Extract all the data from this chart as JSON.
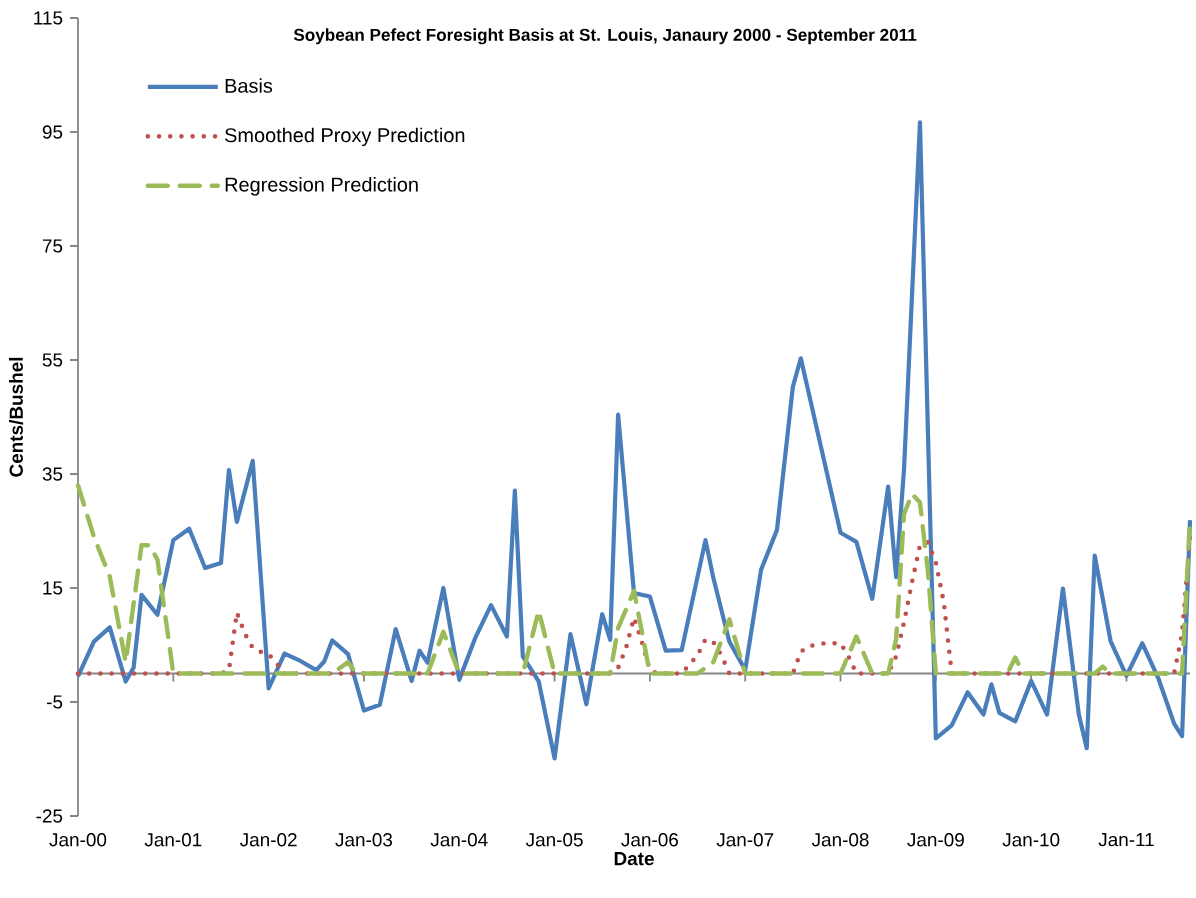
{
  "chart_data": {
    "type": "line",
    "title": "Soybean Pefect Foresight Basis at St. Louis, Janaury 2000 - September 2011",
    "xlabel": "Date",
    "ylabel": "Cents/Bushel",
    "xlim": [
      "2000-01",
      "2011-09"
    ],
    "ylim": [
      -25,
      115
    ],
    "yticks": [
      -25,
      -5,
      15,
      35,
      55,
      75,
      95,
      115
    ],
    "xticks": [
      {
        "value": "2000-01",
        "label": "Jan-00"
      },
      {
        "value": "2001-01",
        "label": "Jan-01"
      },
      {
        "value": "2002-01",
        "label": "Jan-02"
      },
      {
        "value": "2003-01",
        "label": "Jan-03"
      },
      {
        "value": "2004-01",
        "label": "Jan-04"
      },
      {
        "value": "2005-01",
        "label": "Jan-05"
      },
      {
        "value": "2006-01",
        "label": "Jan-06"
      },
      {
        "value": "2007-01",
        "label": "Jan-07"
      },
      {
        "value": "2008-01",
        "label": "Jan-08"
      },
      {
        "value": "2009-01",
        "label": "Jan-09"
      },
      {
        "value": "2010-01",
        "label": "Jan-10"
      },
      {
        "value": "2011-01",
        "label": "Jan-11"
      }
    ],
    "legend": "top left",
    "series": [
      {
        "name": "Basis",
        "color": "#4a7ebb",
        "line_style": "solid",
        "x": [
          "2000-01",
          "2000-03",
          "2000-05",
          "2000-07",
          "2000-08",
          "2000-09",
          "2000-11",
          "2001-01",
          "2001-03",
          "2001-05",
          "2001-07",
          "2001-08",
          "2001-09",
          "2001-11",
          "2002-01",
          "2002-03",
          "2002-05",
          "2002-07",
          "2002-08",
          "2002-09",
          "2002-11",
          "2003-01",
          "2003-03",
          "2003-05",
          "2003-07",
          "2003-08",
          "2003-09",
          "2003-11",
          "2004-01",
          "2004-03",
          "2004-05",
          "2004-07",
          "2004-08",
          "2004-09",
          "2004-11",
          "2005-01",
          "2005-03",
          "2005-05",
          "2005-07",
          "2005-08",
          "2005-09",
          "2005-11",
          "2006-01",
          "2006-03",
          "2006-05",
          "2006-08",
          "2006-09",
          "2006-11",
          "2007-01",
          "2007-03",
          "2007-05",
          "2007-07",
          "2007-08",
          "2008-01",
          "2008-03",
          "2008-05",
          "2008-07",
          "2008-08",
          "2008-09",
          "2008-11",
          "2009-01",
          "2009-03",
          "2009-05",
          "2009-07",
          "2009-08",
          "2009-09",
          "2009-11",
          "2010-01",
          "2010-03",
          "2010-05",
          "2010-07",
          "2010-08",
          "2010-09",
          "2010-11",
          "2011-01",
          "2011-03",
          "2011-05",
          "2011-07",
          "2011-08",
          "2011-09"
        ],
        "values": [
          -0.5,
          5.6,
          8.1,
          -1.4,
          1,
          13.8,
          10.3,
          23.4,
          25.4,
          18.5,
          19.4,
          35.7,
          26.6,
          37.3,
          -2.6,
          3.5,
          2.2,
          0.6,
          2.1,
          5.8,
          3.4,
          -6.5,
          -5.5,
          7.8,
          -1.3,
          4,
          1.9,
          15,
          -1.1,
          6.2,
          12,
          6.5,
          32.1,
          3,
          -1.4,
          -14.9,
          6.9,
          -5.4,
          10.4,
          5.9,
          45.4,
          14.1,
          13.5,
          4,
          4.1,
          23.4,
          16.7,
          5.6,
          0.6,
          18.2,
          25.2,
          50.3,
          55.3,
          24.7,
          23.1,
          13.1,
          32.8,
          16.9,
          36,
          96.7,
          -11.4,
          -9.1,
          -3.3,
          -7.2,
          -1.9,
          -6.9,
          -8.4,
          -1.3,
          -7.2,
          14.9,
          -7.2,
          -13.1,
          20.7,
          5.7,
          -0.4,
          5.3,
          -0.8,
          -8.8,
          -11,
          26.9
        ]
      },
      {
        "name": "Smoothed Proxy Prediction",
        "color": "#c0504d",
        "line_style": "dotted",
        "x": [
          "2000-01",
          "2001-07",
          "2001-08",
          "2001-09",
          "2001-10",
          "2001-11",
          "2001-12",
          "2002-01",
          "2002-02",
          "2002-03",
          "2005-08",
          "2005-09",
          "2005-10",
          "2005-11",
          "2005-12",
          "2006-01",
          "2006-02",
          "2006-05",
          "2006-06",
          "2006-07",
          "2006-08",
          "2006-09",
          "2006-10",
          "2006-11",
          "2007-07",
          "2007-08",
          "2007-09",
          "2007-11",
          "2008-01",
          "2008-02",
          "2008-03",
          "2008-07",
          "2008-08",
          "2008-09",
          "2008-10",
          "2008-11",
          "2008-12",
          "2009-01",
          "2009-02",
          "2009-03",
          "2011-07",
          "2011-08",
          "2011-09"
        ],
        "values": [
          0,
          0,
          0.6,
          10.7,
          7,
          4.5,
          3.8,
          3.4,
          1.8,
          0,
          0,
          1,
          4.5,
          9.8,
          5.5,
          0.6,
          0,
          0,
          1.6,
          3.2,
          6,
          5.5,
          3.2,
          0,
          0,
          3.8,
          4.8,
          5.3,
          5.3,
          3,
          0,
          0,
          3,
          9,
          16,
          22.5,
          23,
          19.5,
          12.5,
          0,
          0,
          7,
          24
        ]
      },
      {
        "name": "Regression Prediction",
        "color": "#9bbb59",
        "line_style": "dashed",
        "x": [
          "2000-01",
          "2000-03",
          "2000-05",
          "2000-07",
          "2000-09",
          "2000-10",
          "2000-11",
          "2001-01",
          "2002-09",
          "2002-11",
          "2002-12",
          "2003-09",
          "2003-11",
          "2004-01",
          "2004-09",
          "2004-11",
          "2005-01",
          "2005-08",
          "2005-09",
          "2005-11",
          "2006-01",
          "2006-07",
          "2006-09",
          "2006-11",
          "2007-01",
          "2008-01",
          "2008-03",
          "2008-05",
          "2008-07",
          "2008-08",
          "2008-09",
          "2008-10",
          "2008-11",
          "2008-12",
          "2009-01",
          "2009-10",
          "2009-11",
          "2009-12",
          "2010-09",
          "2010-10",
          "2010-11",
          "2011-08",
          "2011-09"
        ],
        "values": [
          33,
          24,
          17,
          2,
          22.5,
          22.5,
          20,
          0,
          0,
          2,
          0,
          0,
          7.3,
          0,
          0,
          11,
          0,
          0,
          8,
          14.5,
          0,
          0,
          2,
          9.5,
          0,
          0,
          6.5,
          0,
          0,
          6,
          28,
          31.5,
          30,
          18,
          0,
          0,
          2.8,
          0,
          0,
          1.2,
          0,
          0,
          27
        ]
      }
    ]
  }
}
